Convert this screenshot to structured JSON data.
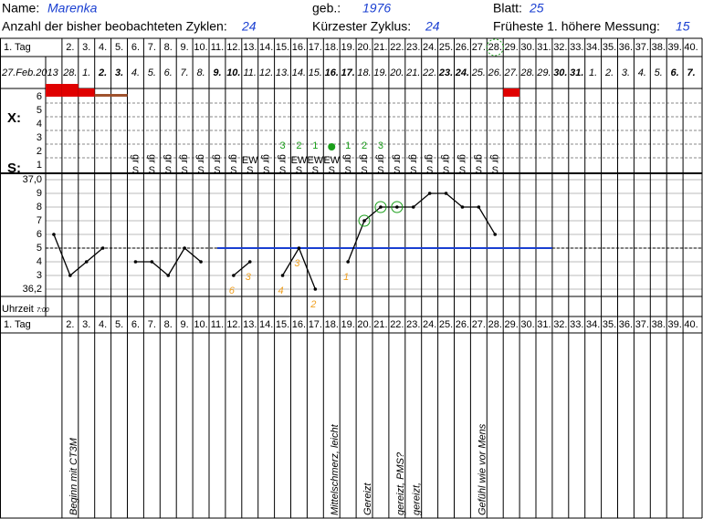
{
  "header": {
    "name_label": "Name:",
    "name": "Marenka",
    "born_label": "geb.:",
    "born": "1976",
    "sheet_label": "Blatt:",
    "sheet": "25",
    "cycles_label": "Anzahl der bisher beobachteten Zyklen:",
    "cycles": "24",
    "shortest_label": "Kürzester Zyklus:",
    "shortest": "24",
    "earliest_label": "Früheste 1. höhere Messung:",
    "earliest": "15"
  },
  "days": [
    "1. Tag",
    "2.",
    "3.",
    "4.",
    "5.",
    "6.",
    "7.",
    "8.",
    "9.",
    "10.",
    "11.",
    "12.",
    "13.",
    "14.",
    "15.",
    "16.",
    "17.",
    "18.",
    "19.",
    "20.",
    "21.",
    "22.",
    "23.",
    "24.",
    "25.",
    "26.",
    "27.",
    "28.",
    "29.",
    "30.",
    "31.",
    "32.",
    "33.",
    "34.",
    "35.",
    "36.",
    "37.",
    "38.",
    "39.",
    "40."
  ],
  "dates": [
    {
      "text": "27.Feb.2013",
      "bold": false
    },
    {
      "text": "28.",
      "bold": false
    },
    {
      "text": "1.",
      "bold": false
    },
    {
      "text": "2.",
      "bold": true
    },
    {
      "text": "3.",
      "bold": true
    },
    {
      "text": "4.",
      "bold": false
    },
    {
      "text": "5.",
      "bold": false
    },
    {
      "text": "6.",
      "bold": false
    },
    {
      "text": "7.",
      "bold": false
    },
    {
      "text": "8.",
      "bold": false
    },
    {
      "text": "9.",
      "bold": true
    },
    {
      "text": "10.",
      "bold": true
    },
    {
      "text": "11.",
      "bold": false
    },
    {
      "text": "12.",
      "bold": false
    },
    {
      "text": "13.",
      "bold": false
    },
    {
      "text": "14.",
      "bold": false
    },
    {
      "text": "15.",
      "bold": false
    },
    {
      "text": "16.",
      "bold": true
    },
    {
      "text": "17.",
      "bold": true
    },
    {
      "text": "18.",
      "bold": false
    },
    {
      "text": "19.",
      "bold": false
    },
    {
      "text": "20.",
      "bold": false
    },
    {
      "text": "21.",
      "bold": false
    },
    {
      "text": "22.",
      "bold": false
    },
    {
      "text": "23.",
      "bold": true
    },
    {
      "text": "24.",
      "bold": true
    },
    {
      "text": "25.",
      "bold": false
    },
    {
      "text": "26.",
      "bold": false
    },
    {
      "text": "27.",
      "bold": false
    },
    {
      "text": "28.",
      "bold": false
    },
    {
      "text": "29.",
      "bold": false
    },
    {
      "text": "30.",
      "bold": true
    },
    {
      "text": "31.",
      "bold": true
    },
    {
      "text": "1.",
      "bold": false
    },
    {
      "text": "2.",
      "bold": false
    },
    {
      "text": "3.",
      "bold": false
    },
    {
      "text": "4.",
      "bold": false
    },
    {
      "text": "5.",
      "bold": false
    },
    {
      "text": "6.",
      "bold": true
    },
    {
      "text": "7.",
      "bold": true
    }
  ],
  "x_label": "X:",
  "s_label": "S:",
  "x_rows": [
    "6",
    "5",
    "4",
    "3",
    "2",
    "1"
  ],
  "bleeding": [
    {
      "day": 1,
      "level": 3,
      "color": "#e00000"
    },
    {
      "day": 2,
      "level": 3,
      "color": "#e00000"
    },
    {
      "day": 3,
      "level": 2,
      "color": "#e00000"
    },
    {
      "day": 4,
      "level": 1,
      "color": "#a0522d"
    },
    {
      "day": 5,
      "level": 1,
      "color": "#a0522d"
    },
    {
      "day": 29,
      "level": 2,
      "color": "#e00000"
    }
  ],
  "mucus_codes": [
    null,
    null,
    null,
    null,
    null,
    "gr",
    "gr",
    "gr",
    "gr",
    "gr",
    "gr",
    "gr",
    "EW",
    "gr",
    "gr",
    "EW",
    "EW",
    "EW",
    "gr",
    "gr",
    "gr",
    "gr",
    "gr",
    "gr",
    "gr",
    "gr",
    "gr",
    "gr",
    null,
    null,
    null,
    null,
    null,
    null,
    null,
    null,
    null,
    null,
    null,
    null
  ],
  "mucus_symbol": "S",
  "counts": [
    {
      "day": 15,
      "label": "3"
    },
    {
      "day": 16,
      "label": "2"
    },
    {
      "day": 17,
      "label": "1"
    },
    {
      "day": 19,
      "label": "1"
    },
    {
      "day": 20,
      "label": "2"
    },
    {
      "day": 21,
      "label": "3"
    }
  ],
  "peak_day": 18,
  "temp_axis": [
    {
      "value": 37.0,
      "label": "37,0"
    },
    {
      "value": 36.9,
      "label": "9"
    },
    {
      "value": 36.8,
      "label": "8"
    },
    {
      "value": 36.7,
      "label": "7"
    },
    {
      "value": 36.6,
      "label": "6"
    },
    {
      "value": 36.5,
      "label": "5"
    },
    {
      "value": 36.4,
      "label": "4"
    },
    {
      "value": 36.3,
      "label": "3"
    },
    {
      "value": 36.2,
      "label": "36,2"
    }
  ],
  "temperatures": [
    36.6,
    36.3,
    36.4,
    36.5,
    null,
    36.4,
    36.4,
    36.3,
    36.5,
    36.4,
    null,
    36.3,
    36.4,
    null,
    36.3,
    36.5,
    36.2,
    null,
    36.4,
    36.7,
    36.8,
    36.8,
    36.8,
    36.9,
    36.9,
    36.8,
    36.8,
    36.6,
    null,
    null,
    null,
    null,
    null,
    null,
    null,
    null,
    null,
    null,
    null,
    null
  ],
  "circled_days": [
    20,
    21,
    22
  ],
  "excluded": [
    {
      "day": 12,
      "label": "6"
    },
    {
      "day": 13,
      "label": "3"
    },
    {
      "day": 15,
      "label": "4"
    },
    {
      "day": 16,
      "label": "3"
    },
    {
      "day": 17,
      "label": "2"
    },
    {
      "day": 19,
      "label": "1"
    }
  ],
  "coverline": {
    "value": 36.5,
    "from_day": 11,
    "to_day": 31
  },
  "time_label": "Uhrzeit",
  "time": "7:00",
  "notes": [
    {
      "day": 2,
      "text": "Beginn mit CT3M"
    },
    {
      "day": 18,
      "text": "Mittelschmerz, leicht"
    },
    {
      "day": 20,
      "text": "Gereizt"
    },
    {
      "day": 22,
      "text": "gereizt, PMS?"
    },
    {
      "day": 23,
      "text": "gereizt,"
    },
    {
      "day": 27,
      "text": "Gefühl wie vor Mens"
    }
  ]
}
